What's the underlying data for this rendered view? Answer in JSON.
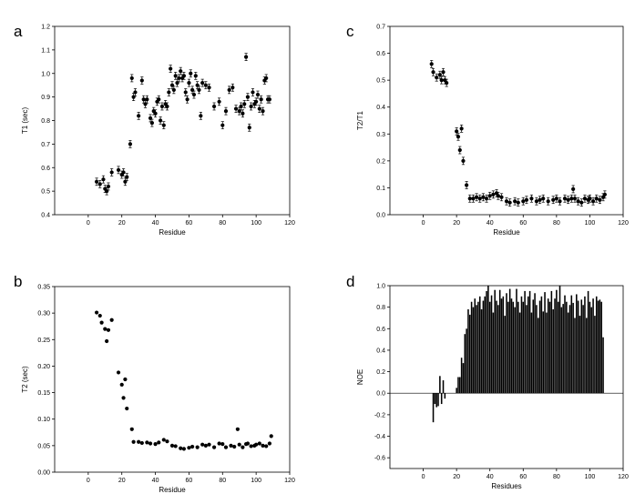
{
  "chart_data": [
    {
      "panel": "a",
      "type": "scatter",
      "xlabel": "Residue",
      "ylabel": "T1 (sec)",
      "xlim": [
        -20,
        120
      ],
      "ylim": [
        0.4,
        1.2
      ],
      "xticks": [
        "0",
        "20",
        "40",
        "60",
        "80",
        "100",
        "120"
      ],
      "yticks": [
        "0.4",
        "0.5",
        "0.6",
        "0.7",
        "0.8",
        "0.9",
        "1.0",
        "1.1",
        "1.2"
      ],
      "error_bars": true,
      "series": [
        {
          "x": [
            5,
            7,
            9,
            10,
            11,
            12,
            14,
            18,
            20,
            21,
            22,
            23,
            25,
            26,
            27,
            28,
            30,
            32,
            33,
            34,
            35,
            37,
            38,
            39,
            40,
            41,
            42,
            43,
            44,
            45,
            46,
            47,
            48,
            49,
            50,
            51,
            52,
            53,
            54,
            55,
            56,
            57,
            58,
            59,
            60,
            61,
            62,
            63,
            64,
            65,
            66,
            67,
            68,
            70,
            72,
            75,
            78,
            80,
            82,
            84,
            86,
            88,
            90,
            91,
            92,
            93,
            94,
            95,
            96,
            97,
            98,
            99,
            100,
            101,
            102,
            103,
            104,
            105,
            106,
            107,
            108
          ],
          "y": [
            0.54,
            0.53,
            0.55,
            0.51,
            0.5,
            0.52,
            0.58,
            0.59,
            0.57,
            0.58,
            0.54,
            0.56,
            0.7,
            0.98,
            0.9,
            0.92,
            0.82,
            0.97,
            0.89,
            0.87,
            0.89,
            0.81,
            0.79,
            0.84,
            0.83,
            0.88,
            0.89,
            0.8,
            0.86,
            0.78,
            0.87,
            0.86,
            0.92,
            1.02,
            0.95,
            0.93,
            0.99,
            0.96,
            0.98,
            1.01,
            0.98,
            0.99,
            0.92,
            0.89,
            0.96,
            1.0,
            0.93,
            0.91,
            0.99,
            0.95,
            0.93,
            0.82,
            0.96,
            0.95,
            0.94,
            0.86,
            0.88,
            0.78,
            0.84,
            0.93,
            0.94,
            0.85,
            0.84,
            0.86,
            0.83,
            0.87,
            1.07,
            0.9,
            0.77,
            0.86,
            0.92,
            0.87,
            0.88,
            0.91,
            0.85,
            0.89,
            0.84,
            0.97,
            0.98,
            0.89,
            0.89
          ]
        }
      ]
    },
    {
      "panel": "b",
      "type": "scatter",
      "xlabel": "Residue",
      "ylabel": "T2 (sec)",
      "xlim": [
        -20,
        120
      ],
      "ylim": [
        0,
        0.35
      ],
      "xticks": [
        "0",
        "20",
        "40",
        "60",
        "80",
        "100",
        "120"
      ],
      "yticks": [
        "0.00",
        "0.05",
        "0.10",
        "0.15",
        "0.20",
        "0.25",
        "0.30",
        "0.35"
      ],
      "series": [
        {
          "x": [
            5,
            7,
            8,
            10,
            11,
            12,
            14,
            18,
            20,
            21,
            22,
            23,
            26,
            27,
            30,
            32,
            35,
            37,
            40,
            42,
            45,
            47,
            50,
            52,
            55,
            57,
            60,
            62,
            65,
            68,
            70,
            72,
            75,
            78,
            80,
            82,
            85,
            87,
            89,
            90,
            92,
            94,
            95,
            97,
            99,
            100,
            102,
            104,
            106,
            108,
            109
          ],
          "y": [
            0.301,
            0.295,
            0.282,
            0.27,
            0.247,
            0.268,
            0.287,
            0.188,
            0.165,
            0.14,
            0.175,
            0.12,
            0.081,
            0.057,
            0.057,
            0.055,
            0.056,
            0.054,
            0.053,
            0.056,
            0.061,
            0.058,
            0.05,
            0.049,
            0.045,
            0.044,
            0.046,
            0.048,
            0.047,
            0.052,
            0.05,
            0.052,
            0.047,
            0.054,
            0.053,
            0.047,
            0.05,
            0.048,
            0.081,
            0.052,
            0.047,
            0.053,
            0.054,
            0.049,
            0.05,
            0.052,
            0.054,
            0.05,
            0.049,
            0.054,
            0.068
          ]
        }
      ]
    },
    {
      "panel": "c",
      "type": "scatter",
      "xlabel": "Residue",
      "ylabel": "T2/T1",
      "xlim": [
        -20,
        120
      ],
      "ylim": [
        0,
        0.7
      ],
      "xticks": [
        "0",
        "20",
        "40",
        "60",
        "80",
        "100",
        "120"
      ],
      "yticks": [
        "0.0",
        "0.1",
        "0.2",
        "0.3",
        "0.4",
        "0.5",
        "0.6",
        "0.7"
      ],
      "error_bars": true,
      "series": [
        {
          "x": [
            5,
            6,
            8,
            10,
            11,
            12,
            13,
            14,
            20,
            21,
            22,
            23,
            24,
            26,
            28,
            30,
            32,
            34,
            36,
            38,
            40,
            42,
            44,
            45,
            47,
            50,
            52,
            55,
            57,
            60,
            62,
            65,
            68,
            70,
            72,
            75,
            78,
            80,
            82,
            85,
            87,
            89,
            90,
            91,
            93,
            95,
            97,
            99,
            100,
            102,
            104,
            106,
            108,
            109
          ],
          "y": [
            0.56,
            0.53,
            0.51,
            0.52,
            0.5,
            0.53,
            0.5,
            0.49,
            0.31,
            0.29,
            0.24,
            0.32,
            0.2,
            0.11,
            0.06,
            0.06,
            0.065,
            0.06,
            0.065,
            0.06,
            0.07,
            0.075,
            0.08,
            0.07,
            0.065,
            0.05,
            0.045,
            0.05,
            0.045,
            0.05,
            0.055,
            0.06,
            0.05,
            0.055,
            0.06,
            0.05,
            0.055,
            0.06,
            0.05,
            0.06,
            0.055,
            0.06,
            0.095,
            0.06,
            0.05,
            0.045,
            0.06,
            0.055,
            0.06,
            0.05,
            0.06,
            0.055,
            0.065,
            0.075
          ]
        }
      ]
    },
    {
      "panel": "d",
      "type": "bar",
      "xlabel": "Residues",
      "ylabel": "NOE",
      "xlim": [
        -20,
        120
      ],
      "ylim": [
        -0.7,
        1.0
      ],
      "xticks": [
        "0",
        "20",
        "40",
        "60",
        "80",
        "100",
        "120"
      ],
      "yticks": [
        "-0.6",
        "-0.4",
        "-0.2",
        "0.0",
        "0.2",
        "0.4",
        "0.6",
        "0.8",
        "1.0"
      ],
      "series": [
        {
          "x": [
            6,
            7,
            8,
            9,
            10,
            11,
            12,
            13,
            20,
            21,
            22,
            23,
            24,
            25,
            26,
            27,
            28,
            29,
            30,
            31,
            32,
            33,
            34,
            35,
            36,
            37,
            38,
            39,
            40,
            41,
            42,
            43,
            44,
            45,
            46,
            47,
            48,
            49,
            50,
            51,
            52,
            53,
            54,
            55,
            56,
            57,
            58,
            59,
            60,
            61,
            62,
            63,
            64,
            65,
            66,
            67,
            68,
            69,
            70,
            71,
            72,
            73,
            74,
            75,
            76,
            77,
            78,
            79,
            80,
            81,
            82,
            83,
            84,
            85,
            86,
            87,
            88,
            89,
            90,
            91,
            92,
            93,
            94,
            95,
            96,
            97,
            98,
            99,
            100,
            101,
            102,
            103,
            104,
            105,
            106,
            107,
            108
          ],
          "y": [
            -0.27,
            -0.1,
            -0.13,
            -0.12,
            0.16,
            -0.1,
            0.12,
            -0.05,
            0.05,
            0.15,
            0.15,
            0.33,
            0.28,
            0.55,
            0.6,
            0.78,
            0.73,
            0.85,
            0.8,
            0.88,
            0.82,
            0.85,
            0.9,
            0.78,
            0.86,
            0.9,
            0.95,
            1.0,
            0.85,
            0.91,
            0.75,
            0.96,
            0.86,
            0.82,
            0.96,
            0.88,
            0.9,
            0.72,
            0.93,
            0.85,
            0.97,
            0.88,
            0.85,
            0.8,
            0.97,
            0.85,
            0.75,
            0.9,
            0.85,
            0.95,
            0.82,
            0.9,
            0.95,
            0.75,
            0.87,
            0.93,
            0.82,
            0.7,
            0.86,
            0.9,
            0.76,
            0.94,
            0.75,
            0.88,
            0.85,
            0.95,
            0.78,
            0.88,
            0.96,
            0.85,
            1.0,
            0.8,
            0.83,
            0.91,
            0.85,
            0.75,
            0.82,
            0.91,
            0.84,
            0.7,
            0.92,
            0.86,
            0.72,
            0.87,
            0.82,
            0.9,
            0.7,
            0.95,
            0.85,
            0.8,
            0.88,
            0.72,
            0.9,
            0.86,
            0.87,
            0.85,
            0.52
          ]
        }
      ]
    }
  ]
}
